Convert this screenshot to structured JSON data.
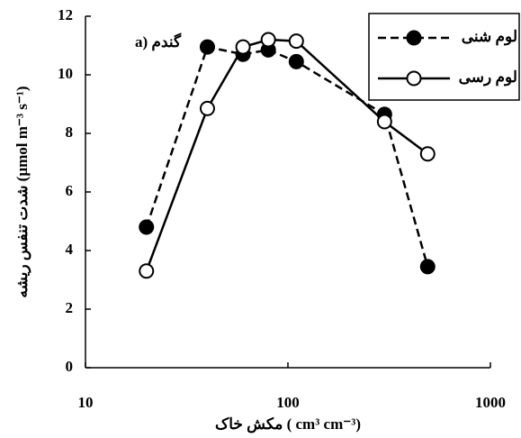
{
  "chart_data": {
    "type": "line",
    "annotation": "a) گندم",
    "x_label": "مکش خاک ( cm³ cm⁻³)",
    "y_label": "شدت تنفس ریشه (µmol m⁻³ s⁻¹)",
    "xscale": "log",
    "xlim": [
      10,
      1000
    ],
    "xticks": [
      10,
      100,
      1000
    ],
    "ylim": [
      0,
      12
    ],
    "yticks": [
      0,
      2,
      4,
      6,
      8,
      10,
      12
    ],
    "legend": "upper right",
    "series": [
      {
        "name": "لوم شنی",
        "color": "#000000",
        "linestyle": "dashed",
        "marker": "filled",
        "x": [
          20,
          40,
          60,
          80,
          110,
          300,
          490
        ],
        "values": [
          4.8,
          10.95,
          10.7,
          10.85,
          10.45,
          8.65,
          3.45
        ]
      },
      {
        "name": "لوم رسی",
        "color": "#000000",
        "linestyle": "solid",
        "marker": "open",
        "x": [
          20,
          40,
          60,
          80,
          110,
          300,
          490
        ],
        "values": [
          3.3,
          8.85,
          10.95,
          11.2,
          11.15,
          8.4,
          7.3
        ]
      }
    ]
  }
}
